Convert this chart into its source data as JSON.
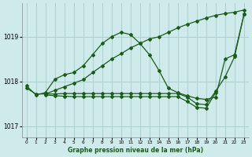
{
  "title": "Graphe pression niveau de la mer (hPa)",
  "bg_color": "#ceeaea",
  "grid_color": "#aacece",
  "line_color": "#1a5c1a",
  "xlim": [
    -0.5,
    23.5
  ],
  "ylim": [
    1016.75,
    1019.75
  ],
  "yticks": [
    1017,
    1018,
    1019
  ],
  "xticks": [
    0,
    1,
    2,
    3,
    4,
    5,
    6,
    7,
    8,
    9,
    10,
    11,
    12,
    13,
    14,
    15,
    16,
    17,
    18,
    19,
    20,
    21,
    22,
    23
  ],
  "series": [
    {
      "x": [
        0,
        1,
        2,
        3,
        4,
        5,
        6,
        7,
        8,
        9,
        10,
        11,
        12,
        13,
        14,
        15,
        16,
        17,
        18,
        19,
        20,
        21,
        22,
        23
      ],
      "y": [
        1017.9,
        1017.7,
        1017.75,
        1018.05,
        1018.15,
        1018.2,
        1018.35,
        1018.6,
        1018.85,
        1019.0,
        1019.1,
        1019.05,
        1018.85,
        1018.6,
        1018.25,
        1017.85,
        1017.75,
        1017.68,
        1017.62,
        1017.6,
        1017.65,
        1018.5,
        1018.6,
        1019.5
      ]
    },
    {
      "x": [
        2,
        3,
        4,
        5,
        6,
        7,
        8,
        9,
        10,
        11,
        12,
        13,
        14,
        15,
        16,
        17,
        18,
        19,
        20,
        21,
        22,
        23
      ],
      "y": [
        1017.72,
        1017.8,
        1017.88,
        1017.96,
        1018.04,
        1018.2,
        1018.35,
        1018.5,
        1018.62,
        1018.75,
        1018.85,
        1018.95,
        1019.0,
        1019.1,
        1019.2,
        1019.28,
        1019.35,
        1019.42,
        1019.48,
        1019.52,
        1019.55,
        1019.6
      ]
    },
    {
      "x": [
        0,
        1,
        2,
        3,
        4,
        5,
        6,
        7,
        8,
        9,
        10,
        11,
        12,
        13,
        14,
        15,
        16,
        17,
        18,
        19,
        20,
        21,
        22,
        23
      ],
      "y": [
        1017.85,
        1017.72,
        1017.72,
        1017.72,
        1017.73,
        1017.73,
        1017.73,
        1017.73,
        1017.73,
        1017.73,
        1017.73,
        1017.73,
        1017.73,
        1017.73,
        1017.73,
        1017.73,
        1017.73,
        1017.65,
        1017.5,
        1017.48,
        1017.78,
        1018.1,
        1018.55,
        1019.5
      ]
    },
    {
      "x": [
        2,
        3,
        4,
        5,
        6,
        7,
        8,
        9,
        10,
        11,
        12,
        13,
        14,
        15,
        16,
        17,
        18,
        19,
        20
      ],
      "y": [
        1017.7,
        1017.68,
        1017.67,
        1017.66,
        1017.66,
        1017.66,
        1017.66,
        1017.66,
        1017.66,
        1017.66,
        1017.66,
        1017.66,
        1017.66,
        1017.66,
        1017.66,
        1017.55,
        1017.42,
        1017.4,
        1017.75
      ]
    }
  ]
}
